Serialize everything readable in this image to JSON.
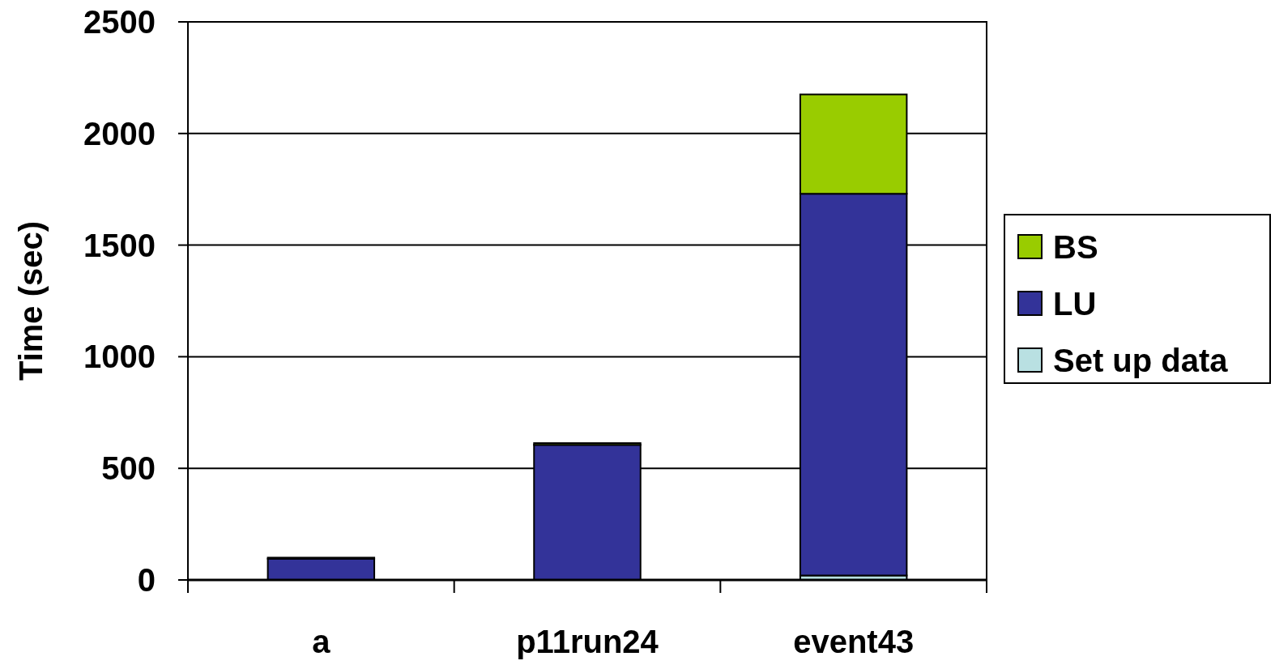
{
  "chart_data": {
    "type": "bar",
    "stacked": true,
    "categories": [
      "a",
      "p11run24",
      "event43"
    ],
    "series": [
      {
        "name": "Set up data",
        "color": "#b9e0e2",
        "values": [
          0,
          0,
          20
        ]
      },
      {
        "name": "LU",
        "color": "#333399",
        "values": [
          95,
          605,
          1710
        ]
      },
      {
        "name": "BS",
        "color": "#99cc00",
        "values": [
          5,
          8,
          445
        ]
      }
    ],
    "ylabel": "Time (sec)",
    "ylim": [
      0,
      2500
    ],
    "yticks": [
      0,
      500,
      1000,
      1500,
      2000,
      2500
    ],
    "grid": "y",
    "legend": "right"
  }
}
